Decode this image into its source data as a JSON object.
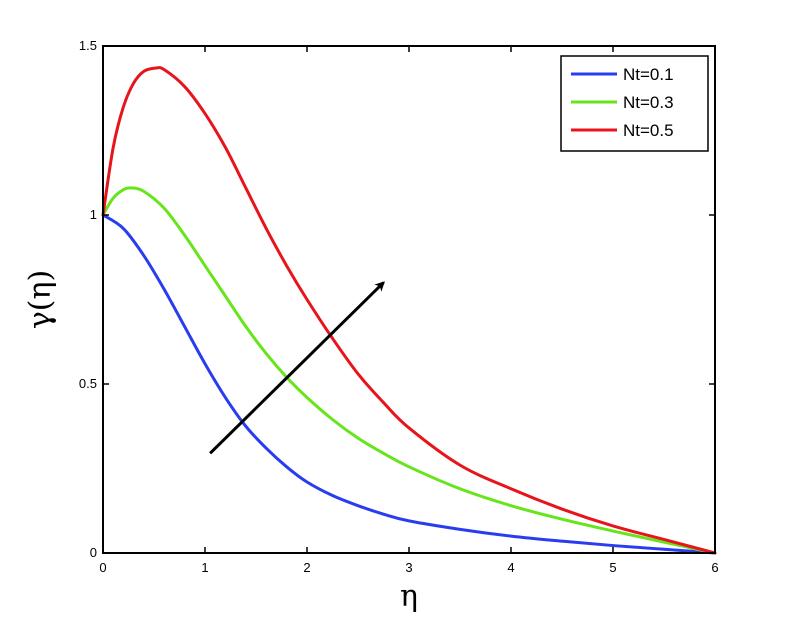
{
  "chart_data": {
    "type": "line",
    "xlabel": "η",
    "ylabel": "γ(η)",
    "xlim": [
      0,
      6
    ],
    "ylim": [
      0,
      1.5
    ],
    "xticks": [
      0,
      1,
      2,
      3,
      4,
      5,
      6
    ],
    "xtick_labels": [
      "0",
      "1",
      "2",
      "3",
      "4",
      "5",
      "6"
    ],
    "yticks": [
      0,
      0.5,
      1,
      1.5
    ],
    "ytick_labels": [
      "0",
      "0.5",
      "1",
      "1.5"
    ],
    "grid": false,
    "legend_position": "top-right",
    "series": [
      {
        "name": "Nt=0.1",
        "color": "#2a3cf0",
        "x": [
          0,
          0.2,
          0.4,
          0.6,
          0.8,
          1.0,
          1.2,
          1.4,
          1.6,
          1.8,
          2.0,
          2.25,
          2.5,
          2.75,
          3.0,
          3.5,
          4.0,
          4.5,
          5.0,
          5.5,
          6.0
        ],
        "y": [
          1.0,
          0.96,
          0.88,
          0.78,
          0.67,
          0.56,
          0.46,
          0.375,
          0.31,
          0.255,
          0.21,
          0.17,
          0.14,
          0.115,
          0.095,
          0.07,
          0.05,
          0.035,
          0.022,
          0.011,
          0.0
        ]
      },
      {
        "name": "Nt=0.3",
        "color": "#66e61a",
        "x": [
          0,
          0.1,
          0.2,
          0.28,
          0.4,
          0.6,
          0.8,
          1.0,
          1.2,
          1.4,
          1.6,
          1.8,
          2.0,
          2.25,
          2.5,
          2.75,
          3.0,
          3.5,
          4.0,
          4.5,
          5.0,
          5.5,
          6.0
        ],
        "y": [
          1.0,
          1.05,
          1.075,
          1.08,
          1.07,
          1.02,
          0.94,
          0.85,
          0.76,
          0.67,
          0.59,
          0.52,
          0.46,
          0.395,
          0.34,
          0.295,
          0.255,
          0.19,
          0.14,
          0.1,
          0.065,
          0.032,
          0.0
        ]
      },
      {
        "name": "Nt=0.5",
        "color": "#e8141c",
        "x": [
          0,
          0.1,
          0.2,
          0.3,
          0.4,
          0.52,
          0.6,
          0.8,
          1.0,
          1.2,
          1.4,
          1.6,
          1.8,
          2.0,
          2.25,
          2.5,
          2.75,
          3.0,
          3.5,
          4.0,
          4.5,
          5.0,
          5.5,
          6.0
        ],
        "y": [
          1.0,
          1.2,
          1.32,
          1.39,
          1.425,
          1.435,
          1.43,
          1.38,
          1.3,
          1.2,
          1.08,
          0.96,
          0.85,
          0.75,
          0.635,
          0.53,
          0.445,
          0.37,
          0.26,
          0.19,
          0.13,
          0.08,
          0.04,
          0.0
        ]
      }
    ],
    "annotations": [
      {
        "type": "arrow",
        "color": "#000000",
        "from": [
          1.05,
          0.295
        ],
        "to": [
          2.75,
          0.8
        ]
      }
    ]
  }
}
